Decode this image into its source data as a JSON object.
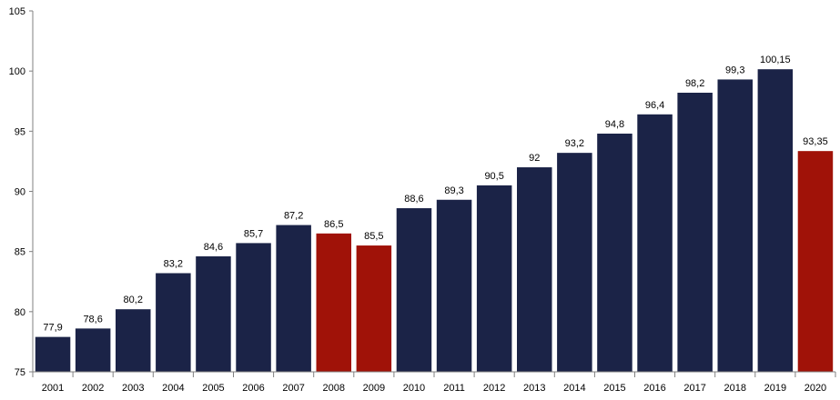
{
  "chart_data": {
    "type": "bar",
    "title": "",
    "xlabel": "",
    "ylabel": "",
    "categories": [
      "2001",
      "2002",
      "2003",
      "2004",
      "2005",
      "2006",
      "2007",
      "2008",
      "2009",
      "2010",
      "2011",
      "2012",
      "2013",
      "2014",
      "2015",
      "2016",
      "2017",
      "2018",
      "2019",
      "2020"
    ],
    "values": [
      77.9,
      78.6,
      80.2,
      83.2,
      84.6,
      85.7,
      87.2,
      86.5,
      85.5,
      88.6,
      89.3,
      90.5,
      92,
      93.2,
      94.8,
      96.4,
      98.2,
      99.3,
      100.15,
      93.35
    ],
    "value_labels": [
      "77,9",
      "78,6",
      "80,2",
      "83,2",
      "84,6",
      "85,7",
      "87,2",
      "86,5",
      "85,5",
      "88,6",
      "89,3",
      "90,5",
      "92",
      "93,2",
      "94,8",
      "96,4",
      "98,2",
      "99,3",
      "100,15",
      "93,35"
    ],
    "highlighted_categories": [
      "2008",
      "2009",
      "2020"
    ],
    "ylim": [
      75,
      105
    ],
    "yticks": [
      75,
      80,
      85,
      90,
      95,
      100,
      105
    ],
    "grid": false,
    "legend": "none",
    "colors": {
      "default_bar": "#1b2347",
      "highlight_bar": "#a01208",
      "axis": "#808080",
      "text": "#000000"
    }
  }
}
